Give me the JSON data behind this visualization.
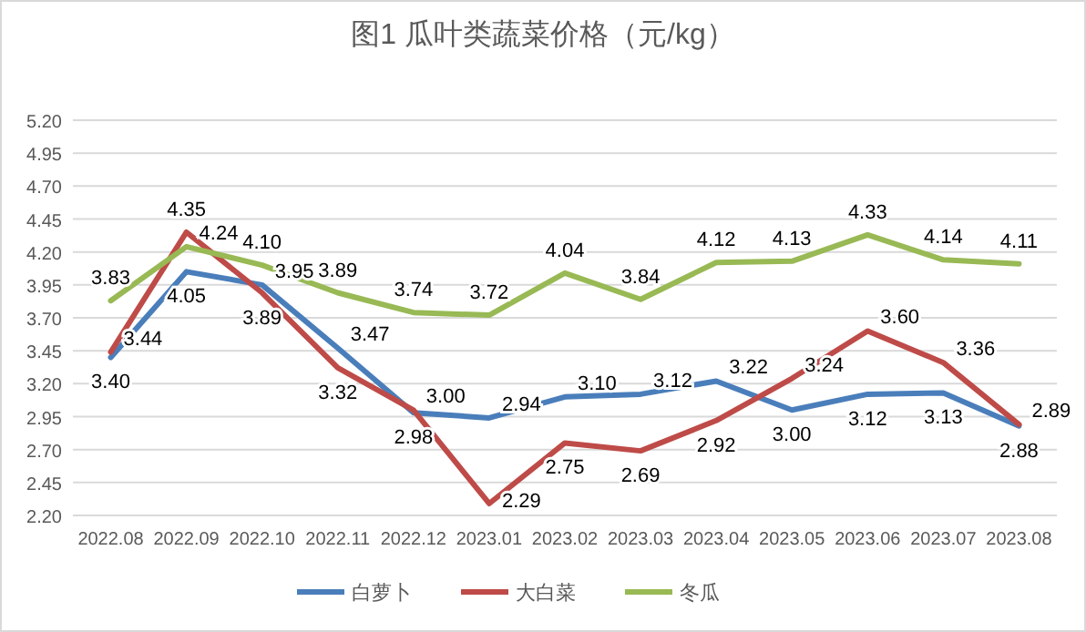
{
  "chart_data": {
    "type": "line",
    "title": "图1  瓜叶类蔬菜价格（元/kg）",
    "categories": [
      "2022.08",
      "2022.09",
      "2022.10",
      "2022.11",
      "2022.12",
      "2023.01",
      "2023.02",
      "2023.03",
      "2023.04",
      "2023.05",
      "2023.06",
      "2023.07",
      "2023.08"
    ],
    "series": [
      {
        "name": "白萝卜",
        "color": "#4a7ebb",
        "values": [
          3.4,
          4.05,
          3.95,
          3.47,
          2.98,
          2.94,
          3.1,
          3.12,
          3.22,
          3.0,
          3.12,
          3.13,
          2.88
        ],
        "value_labels": [
          "3.40",
          "4.05",
          "3.95",
          "3.47",
          "2.98",
          "2.94",
          "3.10",
          "3.12",
          "3.22",
          "3.00",
          "3.12",
          "3.13",
          "2.88"
        ]
      },
      {
        "name": "大白菜",
        "color": "#be4b48",
        "values": [
          3.44,
          4.35,
          3.89,
          3.32,
          3.0,
          2.29,
          2.75,
          2.69,
          2.92,
          3.24,
          3.6,
          3.36,
          2.89
        ],
        "value_labels": [
          "3.44",
          "4.35",
          "3.89",
          "3.32",
          "3.00",
          "2.29",
          "2.75",
          "2.69",
          "2.92",
          "3.24",
          "3.60",
          "3.36",
          "2.89"
        ]
      },
      {
        "name": "冬瓜",
        "color": "#98b954",
        "values": [
          3.83,
          4.24,
          4.1,
          3.89,
          3.74,
          3.72,
          4.04,
          3.84,
          4.12,
          4.13,
          4.33,
          4.14,
          4.11
        ],
        "value_labels": [
          "3.83",
          "4.24",
          "4.10",
          "3.89",
          "3.74",
          "3.72",
          "4.04",
          "3.84",
          "4.12",
          "4.13",
          "4.33",
          "4.14",
          "4.11"
        ]
      }
    ],
    "ylim": [
      2.2,
      5.2
    ],
    "yticks": [
      {
        "value": 2.2,
        "label": "2.20"
      },
      {
        "value": 2.45,
        "label": "2.45"
      },
      {
        "value": 2.7,
        "label": "2.70"
      },
      {
        "value": 2.95,
        "label": "2.95"
      },
      {
        "value": 3.2,
        "label": "3.20"
      },
      {
        "value": 3.45,
        "label": "3.45"
      },
      {
        "value": 3.7,
        "label": "3.70"
      },
      {
        "value": 3.95,
        "label": "3.95"
      },
      {
        "value": 4.2,
        "label": "4.20"
      },
      {
        "value": 4.45,
        "label": "4.45"
      },
      {
        "value": 4.7,
        "label": "4.70"
      },
      {
        "value": 4.95,
        "label": "4.95"
      },
      {
        "value": 5.2,
        "label": "5.20"
      }
    ],
    "grid": "y",
    "legend": "bottom",
    "marker": "none"
  }
}
